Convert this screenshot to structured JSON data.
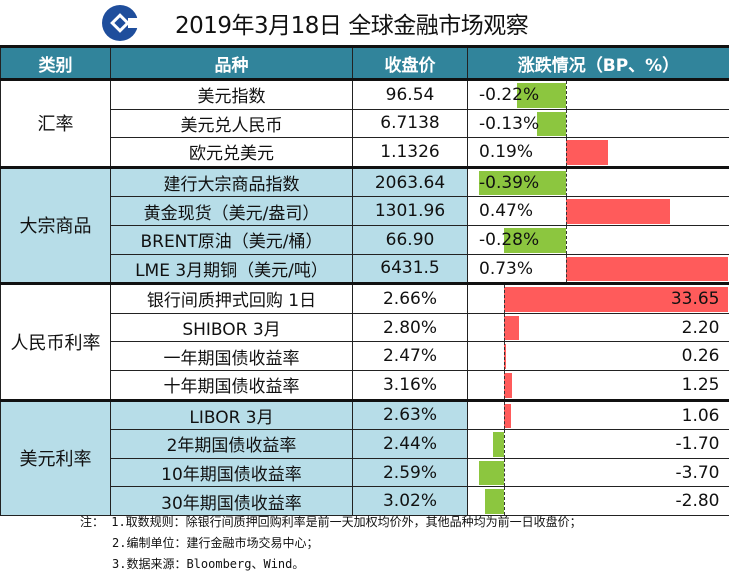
{
  "title": "2019年3月18日 全球金融市场观察",
  "colors": {
    "header": "#31849b",
    "highlight_row": "#b7dde8",
    "positive": "#ff5b5b",
    "negative": "#8cc63f",
    "logo": "#1f4e9c"
  },
  "header": {
    "category": "类别",
    "variety": "品种",
    "close": "收盘价",
    "change": "涨跌情况（BP、%）"
  },
  "chart_data": {
    "type": "bar",
    "orientation": "horizontal",
    "groups": [
      {
        "category": "汇率",
        "unit": "%",
        "highlight": false,
        "rows": [
          {
            "name": "美元指数",
            "close": "96.54",
            "change": -0.22,
            "label": "-0.22%"
          },
          {
            "name": "美元兑人民币",
            "close": "6.7138",
            "change": -0.13,
            "label": "-0.13%"
          },
          {
            "name": "欧元兑美元",
            "close": "1.1326",
            "change": 0.19,
            "label": "0.19%"
          }
        ]
      },
      {
        "category": "大宗商品",
        "unit": "%",
        "highlight": true,
        "rows": [
          {
            "name": "建行大宗商品指数",
            "close": "2063.64",
            "change": -0.39,
            "label": "-0.39%"
          },
          {
            "name": "黄金现货（美元/盎司）",
            "close": "1301.96",
            "change": 0.47,
            "label": "0.47%"
          },
          {
            "name": "BRENT原油（美元/桶）",
            "close": "66.90",
            "change": -0.28,
            "label": "-0.28%"
          },
          {
            "name": "LME 3月期铜（美元/吨）",
            "close": "6431.5",
            "change": 0.73,
            "label": "0.73%"
          }
        ]
      },
      {
        "category": "人民币利率",
        "unit": "BP",
        "highlight": false,
        "rows": [
          {
            "name": "银行间质押式回购 1日",
            "close": "2.66%",
            "change": 33.65,
            "label": "33.65"
          },
          {
            "name": "SHIBOR 3月",
            "close": "2.80%",
            "change": 2.2,
            "label": "2.20"
          },
          {
            "name": "一年期国债收益率",
            "close": "2.47%",
            "change": 0.26,
            "label": "0.26"
          },
          {
            "name": "十年期国债收益率",
            "close": "3.16%",
            "change": 1.25,
            "label": "1.25"
          }
        ]
      },
      {
        "category": "美元利率",
        "unit": "BP",
        "highlight": true,
        "rows": [
          {
            "name": "LIBOR 3月",
            "close": "2.63%",
            "change": 1.06,
            "label": "1.06"
          },
          {
            "name": "2年期国债收益率",
            "close": "2.44%",
            "change": -1.7,
            "label": "-1.70"
          },
          {
            "name": "10年期国债收益率",
            "close": "2.59%",
            "change": -3.7,
            "label": "-3.70"
          },
          {
            "name": "30年期国债收益率",
            "close": "3.02%",
            "change": -2.8,
            "label": "-2.80"
          }
        ]
      }
    ]
  },
  "notes": [
    "注： 1.取数规则：除银行间质押回购利率是前一天加权均价外，其他品种均为前一日收盘价；",
    "2.编制单位：建行金融市场交易中心；",
    "3.数据来源：Bloomberg、Wind。"
  ]
}
